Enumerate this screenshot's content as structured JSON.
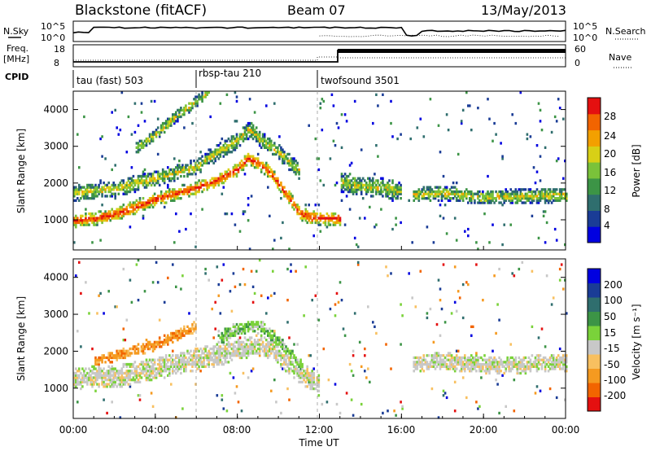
{
  "header": {
    "station": "Blackstone (fitACF)",
    "beam": "Beam 07",
    "date": "13/May/2013"
  },
  "noise_panel": {
    "left_label": "N.Sky",
    "right_label": "N.Search",
    "right_legend_line": "dotted",
    "left_ticks": [
      "10^5",
      "10^0"
    ],
    "right_ticks": [
      "10^5",
      "10^0"
    ]
  },
  "freq_panel": {
    "left_label_line1": "Freq.",
    "left_label_line2": "[MHz]",
    "right_label": "Nave",
    "right_legend_line": "dotted",
    "left_ticks": [
      "18",
      "8"
    ],
    "right_ticks": [
      "60",
      "0"
    ]
  },
  "cpid_panel": {
    "label": "CPID",
    "segments": [
      {
        "name": "tau (fast) 503",
        "start_hr": 0,
        "end_hr": 6
      },
      {
        "name": "rbsp-tau 210",
        "start_hr": 6,
        "end_hr": 12
      },
      {
        "name": "twofsound 3501",
        "start_hr": 12,
        "end_hr": 24
      }
    ]
  },
  "power_panel": {
    "ylabel": "Slant Range [km]",
    "colorbar_label": "Power [dB]",
    "colorbar_ticks": [
      "28",
      "24",
      "20",
      "16",
      "12",
      "8",
      "4"
    ]
  },
  "velocity_panel": {
    "ylabel": "Slant Range [km]",
    "colorbar_label": "Velocity [m s⁻¹]",
    "colorbar_ticks": [
      "200",
      "100",
      "50",
      "15",
      "-15",
      "-50",
      "-100",
      "-200"
    ]
  },
  "x_axis": {
    "label": "Time UT",
    "ticks": [
      "00:00",
      "04:00",
      "08:00",
      "12:00",
      "16:00",
      "20:00",
      "00:00"
    ]
  },
  "chart_data": [
    {
      "type": "heatmap",
      "title": "",
      "xlabel": "Time UT",
      "ylabel": "Slant Range [km]",
      "x_range_hr": [
        0,
        24
      ],
      "ylim": [
        180,
        4500
      ],
      "yticks": [
        1000,
        2000,
        3000,
        4000
      ],
      "colorbar": {
        "label": "Power [dB]",
        "ticks": [
          4,
          8,
          12,
          16,
          20,
          24,
          28
        ],
        "colors": [
          "#0000e0",
          "#1a3c96",
          "#2f6e6e",
          "#3c9446",
          "#7ac23a",
          "#d8d016",
          "#f3a000",
          "#f26400",
          "#e41010"
        ]
      },
      "bands": [
        {
          "name": "main",
          "points": [
            [
              0,
              950
            ],
            [
              1,
              1000
            ],
            [
              2,
              1130
            ],
            [
              3,
              1320
            ],
            [
              4,
              1530
            ],
            [
              5,
              1700
            ],
            [
              6,
              1850
            ],
            [
              7,
              2050
            ],
            [
              8,
              2350
            ],
            [
              8.5,
              2650
            ],
            [
              9,
              2500
            ],
            [
              9.5,
              2300
            ],
            [
              10,
              1950
            ],
            [
              10.6,
              1500
            ],
            [
              11,
              1150
            ],
            [
              11.5,
              1050
            ],
            [
              12,
              1020
            ],
            [
              13,
              1000
            ]
          ],
          "width": 180,
          "strength": "high"
        },
        {
          "name": "upper-1",
          "points": [
            [
              0,
              1700
            ],
            [
              2,
              1820
            ],
            [
              4,
              2100
            ],
            [
              6,
              2420
            ],
            [
              7,
              2800
            ],
            [
              8,
              3150
            ],
            [
              8.6,
              3450
            ],
            [
              9,
              3200
            ],
            [
              10,
              2800
            ],
            [
              11,
              2300
            ]
          ],
          "width": 220,
          "strength": "mid"
        },
        {
          "name": "upper-2",
          "points": [
            [
              3,
              2900
            ],
            [
              4,
              3300
            ],
            [
              5,
              3800
            ],
            [
              6,
              4200
            ],
            [
              6.6,
              4450
            ]
          ],
          "width": 160,
          "strength": "mid"
        },
        {
          "name": "late-a",
          "points": [
            [
              13,
              2000
            ],
            [
              14,
              1900
            ],
            [
              15,
              1850
            ],
            [
              16,
              1750
            ]
          ],
          "width": 260,
          "strength": "mid"
        },
        {
          "name": "late-b",
          "points": [
            [
              16.5,
              1650
            ],
            [
              18,
              1700
            ],
            [
              20,
              1580
            ],
            [
              22,
              1620
            ],
            [
              24,
              1650
            ]
          ],
          "width": 200,
          "strength": "mid"
        }
      ]
    },
    {
      "type": "heatmap",
      "title": "",
      "xlabel": "Time UT",
      "ylabel": "Slant Range [km]",
      "x_range_hr": [
        0,
        24
      ],
      "ylim": [
        180,
        4500
      ],
      "yticks": [
        1000,
        2000,
        3000,
        4000
      ],
      "colorbar": {
        "label": "Velocity [m s⁻¹]",
        "ticks": [
          -200,
          -100,
          -50,
          -15,
          15,
          50,
          100,
          200
        ],
        "colors": [
          "#e41010",
          "#f26400",
          "#f59a20",
          "#f8c060",
          "#c8c8c8",
          "#7ad23a",
          "#3c9446",
          "#2f6e6e",
          "#1a3c96",
          "#0000e0"
        ]
      },
      "bands": [
        {
          "name": "ground-scatter",
          "points": [
            [
              0,
              1250
            ],
            [
              2,
              1280
            ],
            [
              4,
              1500
            ],
            [
              6,
              1750
            ],
            [
              8,
              2000
            ],
            [
              9,
              2200
            ],
            [
              10,
              1900
            ],
            [
              11,
              1400
            ],
            [
              12,
              1050
            ]
          ],
          "width": 300,
          "value": "grey"
        },
        {
          "name": "positive-arc",
          "points": [
            [
              7,
              2300
            ],
            [
              8,
              2600
            ],
            [
              9,
              2700
            ],
            [
              10,
              2200
            ],
            [
              11,
              1600
            ],
            [
              11.6,
              1050
            ]
          ],
          "width": 180,
          "value": "green"
        },
        {
          "name": "negative-arc",
          "points": [
            [
              1,
              1700
            ],
            [
              3,
              2000
            ],
            [
              4,
              2150
            ],
            [
              5,
              2400
            ],
            [
              6,
              2650
            ]
          ],
          "width": 150,
          "value": "orange"
        },
        {
          "name": "late-grey",
          "points": [
            [
              16.5,
              1650
            ],
            [
              18,
              1700
            ],
            [
              20,
              1600
            ],
            [
              22,
              1620
            ],
            [
              24,
              1680
            ]
          ],
          "width": 240,
          "value": "grey"
        }
      ]
    }
  ]
}
